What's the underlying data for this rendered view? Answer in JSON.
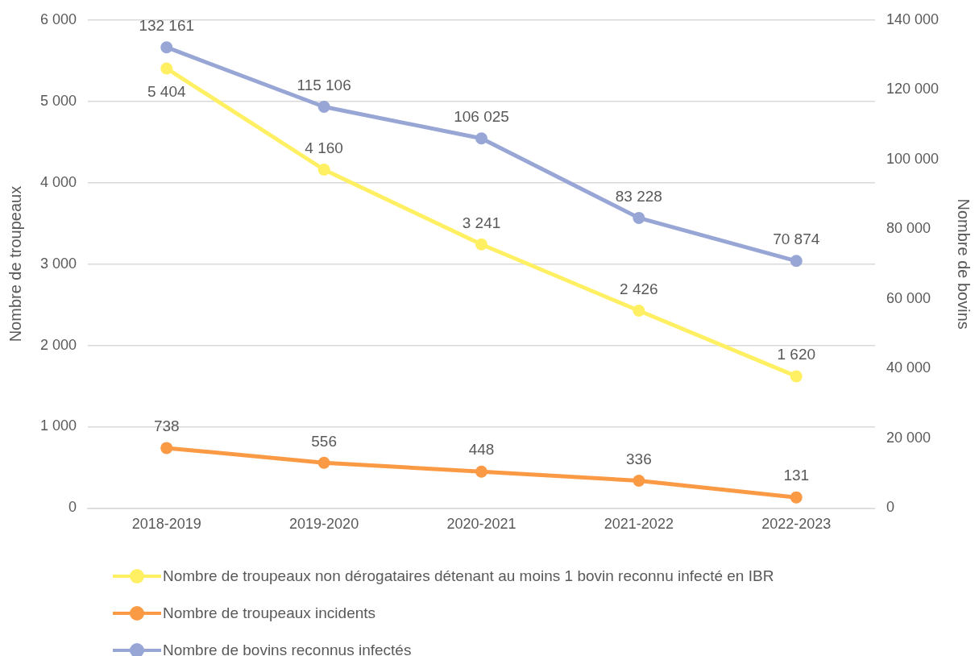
{
  "chart_data": {
    "type": "line",
    "ylabel": "Nombre de troupeaux",
    "y2label": "Nombre de bovins",
    "categories": [
      "2018-2019",
      "2019-2020",
      "2020-2021",
      "2021-2022",
      "2022-2023"
    ],
    "series": [
      {
        "name": "Nombre de troupeaux non dérogataires détenant au moins 1 bovin reconnu infecté en IBR",
        "color": "#fff063",
        "values": [
          5404,
          4160,
          3241,
          2426,
          1620
        ],
        "value_labels": [
          "5 404",
          "4 160",
          "3 241",
          "2 426",
          "1 620"
        ]
      },
      {
        "name": "Nombre de troupeaux incidents",
        "color": "#fb9a45",
        "values": [
          738,
          556,
          448,
          336,
          131
        ],
        "value_labels": [
          "738",
          "556",
          "448",
          "336",
          "131"
        ]
      },
      {
        "name": "Nombre de bovins reconnus infectés",
        "color": "#98a6d6",
        "axis": "y2",
        "values": [
          132161,
          115106,
          106025,
          83228,
          70874
        ],
        "value_labels": [
          "132 161",
          "115 106",
          "106 025",
          "83 228",
          "70 874"
        ]
      }
    ],
    "ylim": [
      0,
      6000
    ],
    "yticks": [
      {
        "value": 0,
        "label": "0"
      },
      {
        "value": 1000,
        "label": "1 000"
      },
      {
        "value": 2000,
        "label": "2 000"
      },
      {
        "value": 3000,
        "label": "3 000"
      },
      {
        "value": 4000,
        "label": "4 000"
      },
      {
        "value": 5000,
        "label": "5 000"
      },
      {
        "value": 6000,
        "label": "6 000"
      }
    ],
    "y2lim": [
      0,
      140000
    ],
    "y2ticks": [
      {
        "value": 0,
        "label": "0"
      },
      {
        "value": 20000,
        "label": "20 000"
      },
      {
        "value": 40000,
        "label": "40 000"
      },
      {
        "value": 60000,
        "label": "60 000"
      },
      {
        "value": 80000,
        "label": "80 000"
      },
      {
        "value": 100000,
        "label": "100 000"
      },
      {
        "value": 120000,
        "label": "120 000"
      },
      {
        "value": 140000,
        "label": "140 000"
      }
    ],
    "grid": "y",
    "legend": "bottom",
    "marker": "circle",
    "line_style": "solid"
  }
}
